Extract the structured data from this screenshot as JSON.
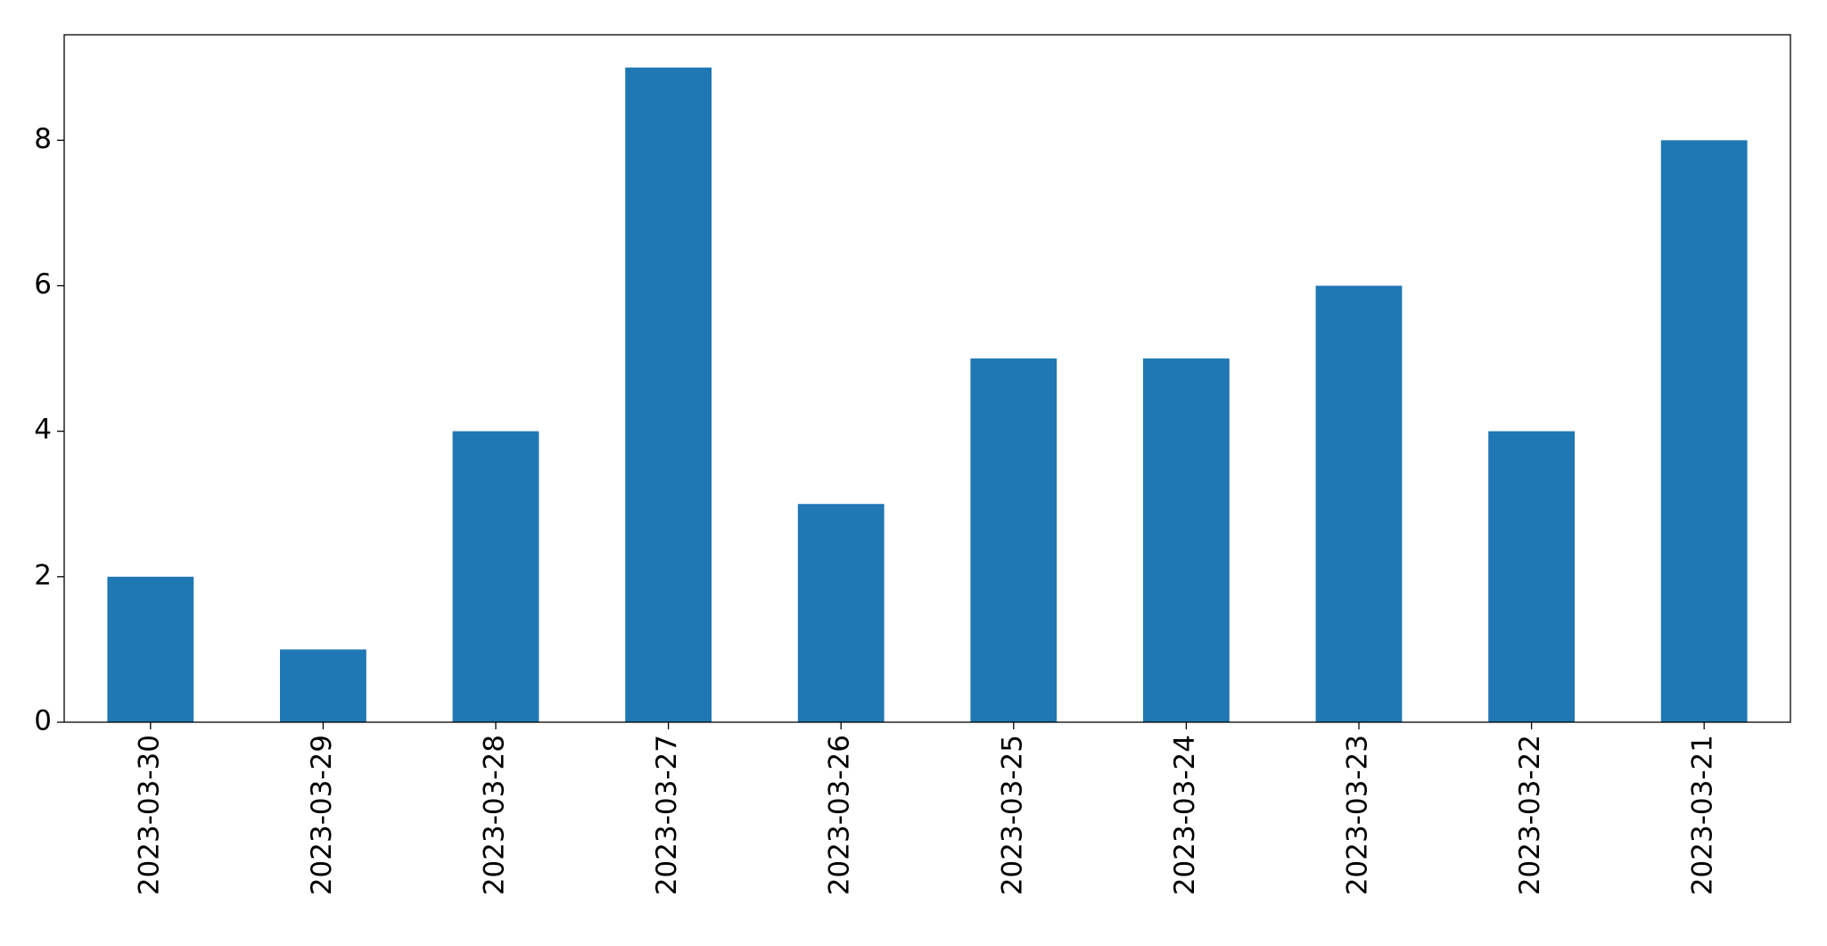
{
  "chart_data": {
    "type": "bar",
    "categories": [
      "2023-03-30",
      "2023-03-29",
      "2023-03-28",
      "2023-03-27",
      "2023-03-26",
      "2023-03-25",
      "2023-03-24",
      "2023-03-23",
      "2023-03-22",
      "2023-03-21"
    ],
    "values": [
      2,
      1,
      4,
      9,
      3,
      5,
      5,
      6,
      4,
      8
    ],
    "color": "#1f77b4",
    "ylim": [
      0,
      9.45
    ],
    "yticks": [
      0,
      2,
      4,
      6,
      8
    ],
    "grid": false
  }
}
